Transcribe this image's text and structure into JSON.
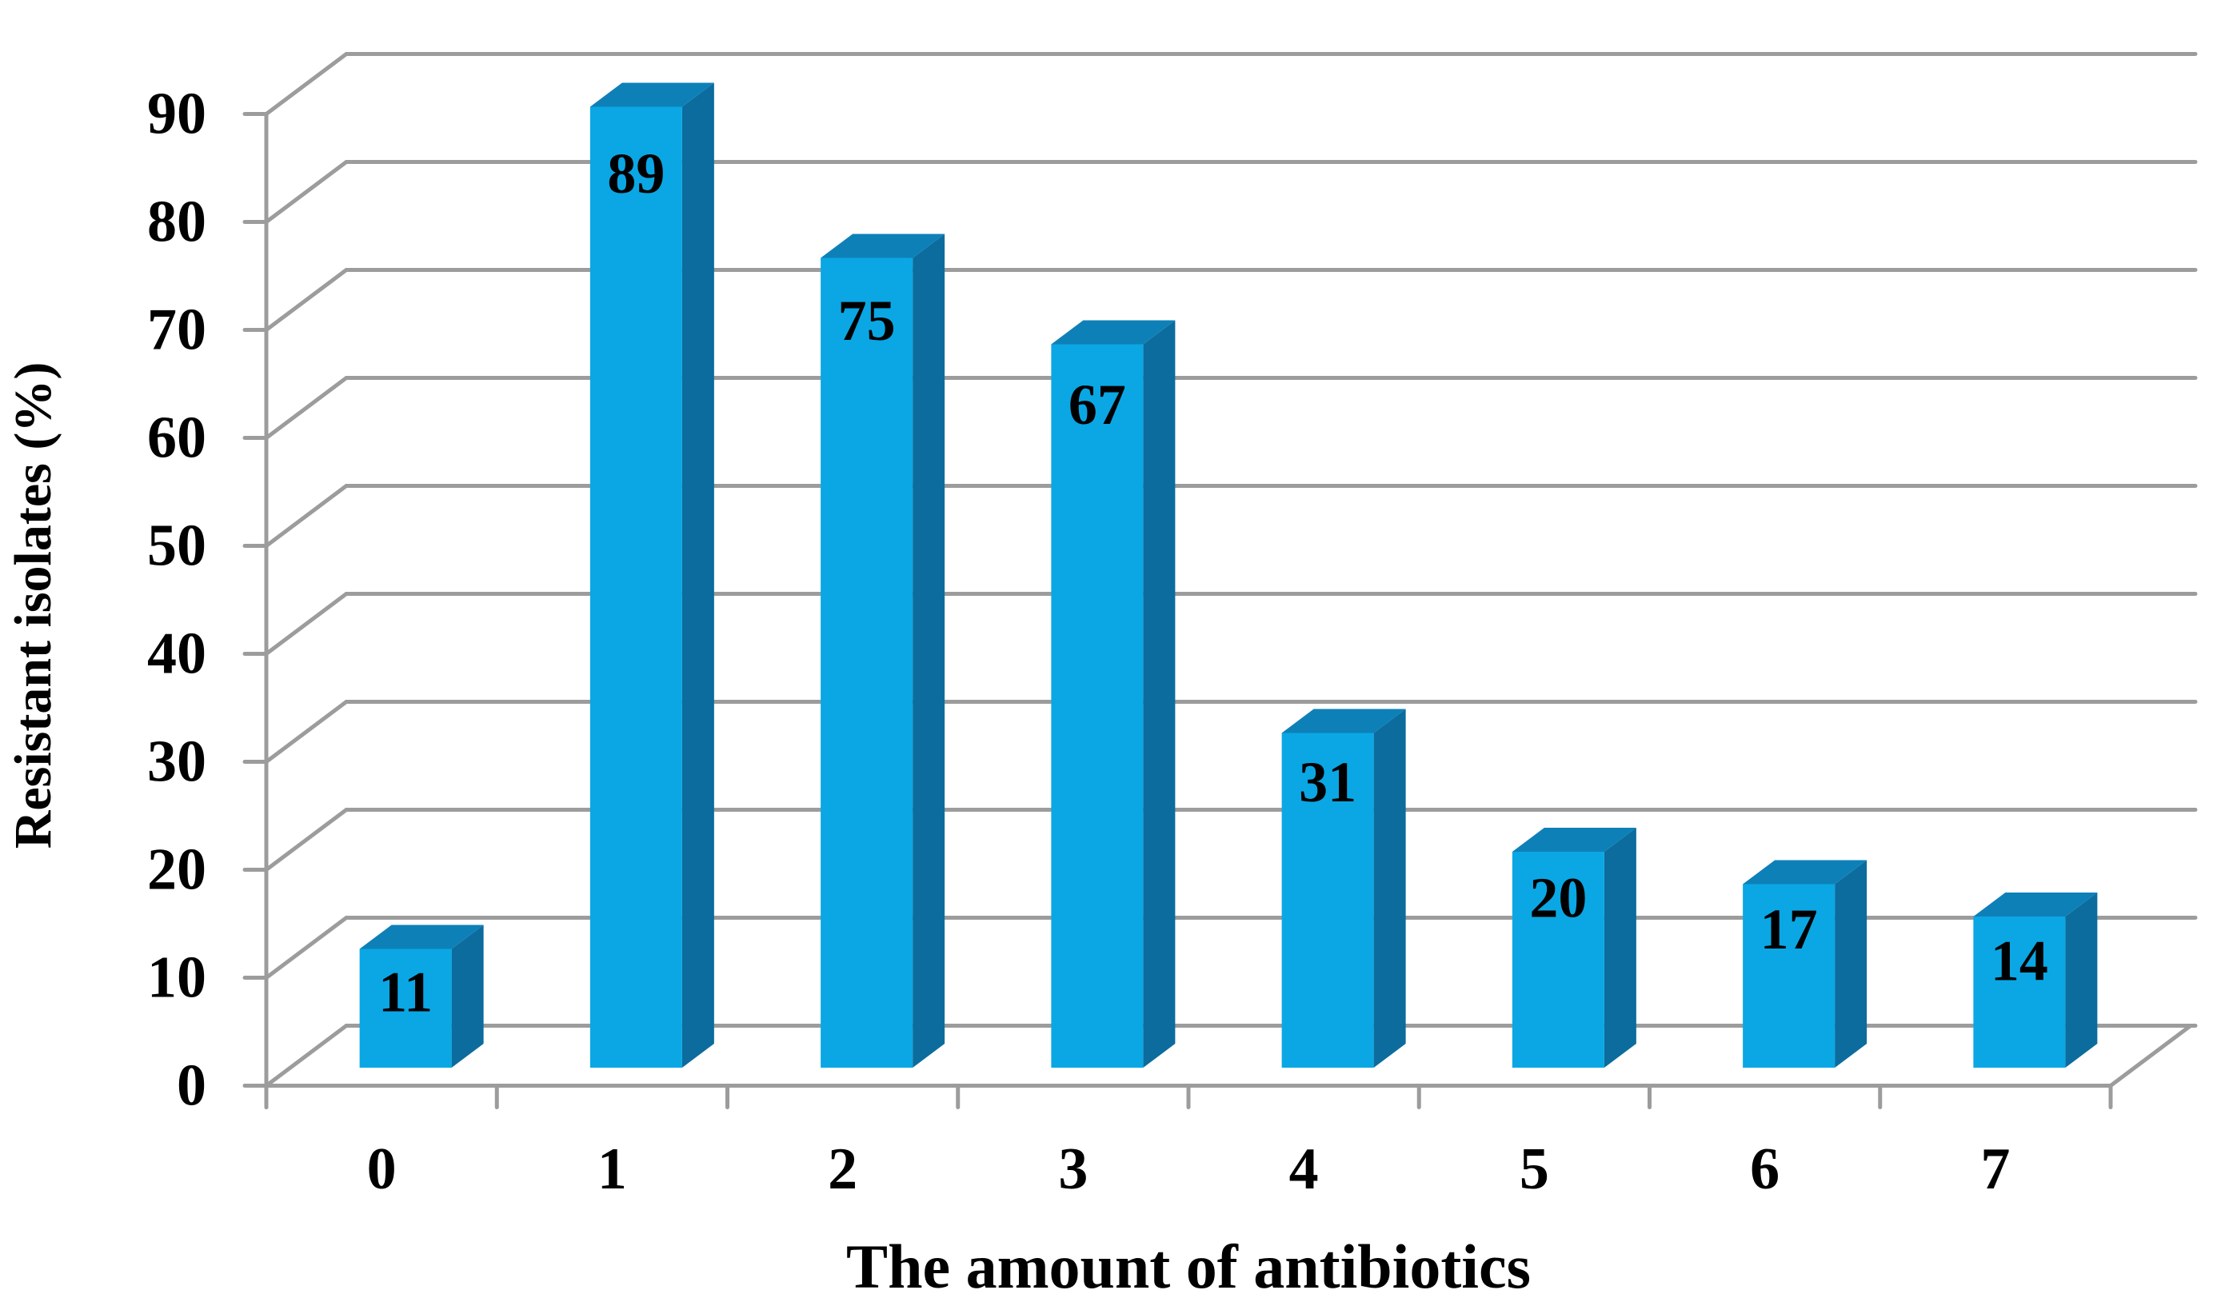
{
  "chart_data": {
    "type": "bar",
    "style": "3d-column",
    "title": "",
    "xlabel": "The amount of antibiotics",
    "ylabel": "Resistant isolates (%)",
    "categories": [
      "0",
      "1",
      "2",
      "3",
      "4",
      "5",
      "6",
      "7"
    ],
    "series": [
      {
        "name": "Resistant isolates (%)",
        "values": [
          11,
          89,
          75,
          67,
          31,
          20,
          17,
          14
        ]
      }
    ],
    "data_labels": [
      11,
      89,
      75,
      67,
      31,
      20,
      17,
      14
    ],
    "ylim": [
      0,
      90
    ],
    "yticks": [
      0,
      10,
      20,
      30,
      40,
      50,
      60,
      70,
      80,
      90
    ],
    "grid": true,
    "legend": false,
    "colors": {
      "bar_front": "#0AA7E4",
      "bar_top": "#0E80B8",
      "bar_side": "#0B6C9D",
      "gridline": "#9C9C9C",
      "axis": "#9C9C9C",
      "label_text": "#000000",
      "background": "#FFFFFF"
    }
  }
}
